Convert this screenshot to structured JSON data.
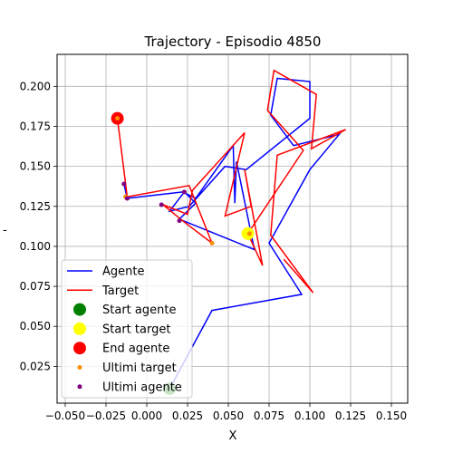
{
  "chart_data": {
    "type": "line",
    "title": "Trajectory - Episodio 4850",
    "xlabel": "X",
    "ylabel": "-",
    "xlim": [
      -0.055,
      0.16
    ],
    "ylim": [
      0.002,
      0.22
    ],
    "xticks": [
      -0.05,
      -0.025,
      0.0,
      0.025,
      0.05,
      0.075,
      0.1,
      0.125,
      0.15
    ],
    "xtick_labels": [
      "−0.050",
      "−0.025",
      "0.000",
      "0.025",
      "0.050",
      "0.075",
      "0.100",
      "0.125",
      "0.150"
    ],
    "yticks": [
      0.025,
      0.05,
      0.075,
      0.1,
      0.125,
      0.15,
      0.175,
      0.2
    ],
    "ytick_labels": [
      "0.025",
      "0.050",
      "0.075",
      "0.100",
      "0.125",
      "0.150",
      "0.175",
      "0.200"
    ],
    "grid": true,
    "legend_position": "lower-left",
    "series": [
      {
        "name": "Agente",
        "kind": "line",
        "color": "#0000ff",
        "points": [
          [
            0.014,
            0.011
          ],
          [
            0.04,
            0.06
          ],
          [
            0.095,
            0.07
          ],
          [
            0.075,
            0.102
          ],
          [
            0.1,
            0.148
          ],
          [
            0.118,
            0.17
          ],
          [
            0.09,
            0.163
          ],
          [
            0.076,
            0.182
          ],
          [
            0.08,
            0.205
          ],
          [
            0.1,
            0.203
          ],
          [
            0.1,
            0.18
          ],
          [
            0.061,
            0.148
          ],
          [
            0.048,
            0.15
          ],
          [
            0.026,
            0.125
          ],
          [
            0.014,
            0.122
          ],
          [
            0.023,
            0.134
          ],
          [
            0.03,
            0.127
          ],
          [
            0.02,
            0.117
          ],
          [
            0.066,
            0.098
          ],
          [
            0.055,
            0.153
          ],
          [
            0.054,
            0.127
          ],
          [
            0.053,
            0.163
          ],
          [
            0.03,
            0.13
          ],
          [
            0.022,
            0.134
          ],
          [
            -0.012,
            0.13
          ],
          [
            -0.014,
            0.139
          ]
        ]
      },
      {
        "name": "Target",
        "kind": "line",
        "color": "#ff0000",
        "points": [
          [
            -0.018,
            0.18
          ],
          [
            -0.012,
            0.131
          ],
          [
            0.026,
            0.138
          ],
          [
            0.04,
            0.102
          ],
          [
            0.022,
            0.116
          ],
          [
            0.01,
            0.126
          ],
          [
            0.025,
            0.12
          ],
          [
            0.028,
            0.135
          ],
          [
            0.06,
            0.171
          ],
          [
            0.048,
            0.119
          ],
          [
            0.064,
            0.125
          ],
          [
            0.06,
            0.148
          ],
          [
            0.071,
            0.088
          ],
          [
            0.062,
            0.108
          ],
          [
            0.096,
            0.16
          ],
          [
            0.074,
            0.185
          ],
          [
            0.078,
            0.21
          ],
          [
            0.104,
            0.195
          ],
          [
            0.101,
            0.161
          ],
          [
            0.122,
            0.173
          ],
          [
            0.08,
            0.157
          ],
          [
            0.076,
            0.107
          ],
          [
            0.102,
            0.071
          ],
          [
            0.084,
            0.092
          ]
        ]
      },
      {
        "name": "Start agente",
        "kind": "marker",
        "color": "#008000",
        "size": 7,
        "points": [
          [
            0.014,
            0.011
          ]
        ]
      },
      {
        "name": "Start target",
        "kind": "marker",
        "color": "#ffff00",
        "size": 7,
        "points": [
          [
            0.062,
            0.108
          ]
        ]
      },
      {
        "name": "End agente",
        "kind": "marker",
        "color": "#ff0000",
        "size": 7,
        "points": [
          [
            -0.018,
            0.18
          ]
        ]
      },
      {
        "name": "Ultimi target",
        "kind": "marker",
        "color": "#ff8c00",
        "size": 2.5,
        "points": [
          [
            -0.018,
            0.18
          ],
          [
            -0.013,
            0.131
          ],
          [
            0.04,
            0.102
          ],
          [
            0.063,
            0.108
          ]
        ]
      },
      {
        "name": "Ultimi agente",
        "kind": "marker",
        "color": "#800080",
        "size": 2.5,
        "points": [
          [
            -0.014,
            0.139
          ],
          [
            -0.012,
            0.13
          ],
          [
            0.009,
            0.126
          ],
          [
            0.023,
            0.134
          ],
          [
            0.02,
            0.116
          ]
        ]
      }
    ]
  }
}
